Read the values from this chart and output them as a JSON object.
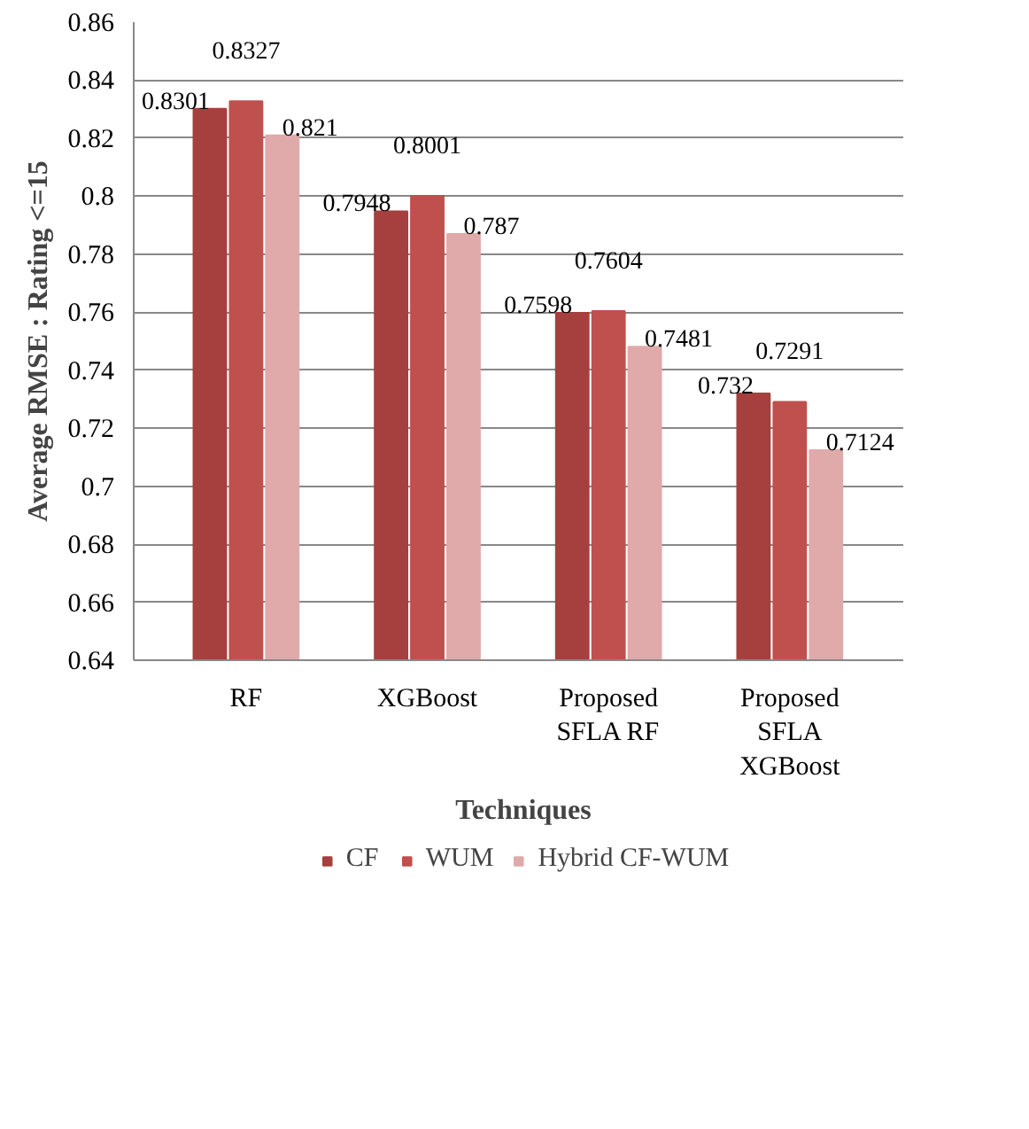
{
  "chart_data": {
    "type": "bar",
    "categories": [
      "RF",
      "XGBoost",
      "Proposed SFLA RF",
      "Proposed SFLA XGBoost"
    ],
    "series": [
      {
        "name": "CF",
        "color": "#a5403e",
        "values": [
          0.8301,
          0.7948,
          0.7598,
          0.732
        ]
      },
      {
        "name": "WUM",
        "color": "#c0504d",
        "values": [
          0.8327,
          0.8001,
          0.7604,
          0.7291
        ]
      },
      {
        "name": "Hybrid CF-WUM",
        "color": "#dfaaa9",
        "values": [
          0.821,
          0.787,
          0.7481,
          0.7124
        ]
      }
    ],
    "xlabel": "Techniques",
    "ylabel": "Average RMSE : Rating <=15",
    "ylim": [
      0.64,
      0.86
    ],
    "yticks": [
      0.64,
      0.66,
      0.68,
      0.7,
      0.72,
      0.74,
      0.76,
      0.78,
      0.8,
      0.82,
      0.84,
      0.86
    ],
    "grid": "y",
    "legend": "bottom",
    "data_labels": true
  }
}
